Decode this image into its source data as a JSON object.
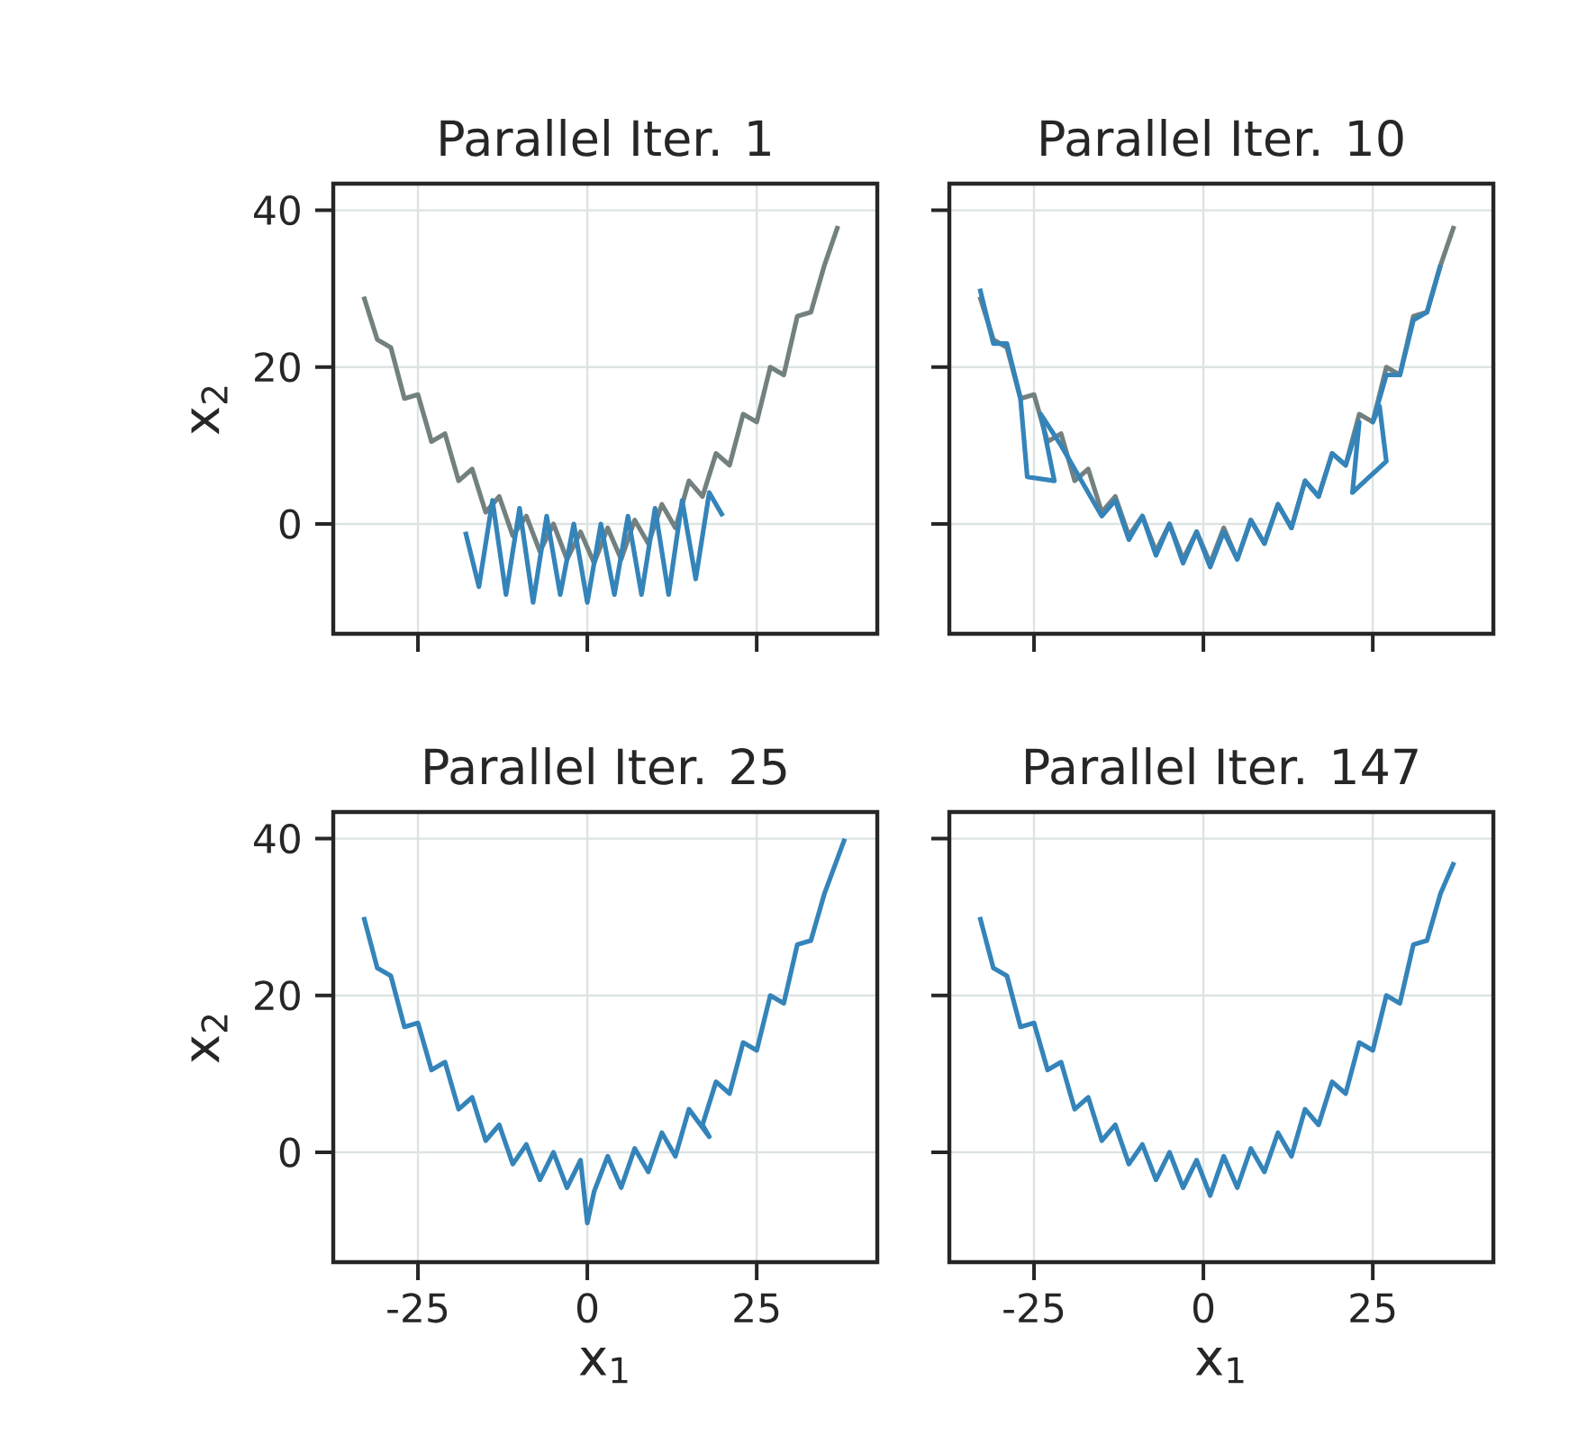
{
  "chart_data": [
    {
      "type": "line",
      "title": "Parallel Iter. 1",
      "ylabel": "x$_{2}$",
      "xlim": [
        -37.5,
        42.8
      ],
      "ylim": [
        -14,
        43.4
      ],
      "xticks": [
        -25,
        0,
        25
      ],
      "yticks": [
        0,
        20,
        40
      ],
      "grid": true,
      "tick_labels": "y",
      "series": [
        {
          "color": "#738080",
          "x": [
            -33,
            -31,
            -29,
            -27,
            -25,
            -23,
            -21,
            -19,
            -17,
            -15,
            -13,
            -11,
            -9,
            -7,
            -5,
            -3,
            -1,
            1,
            3,
            5,
            7,
            9,
            11,
            13,
            15,
            17,
            19,
            21,
            23,
            25,
            27,
            29,
            31,
            33,
            35,
            37
          ],
          "values": [
            29,
            23.5,
            22.5,
            16,
            16.5,
            10.5,
            11.5,
            5.5,
            7,
            1.5,
            3.5,
            -1.5,
            1,
            -3.5,
            0,
            -4.5,
            -1,
            -5,
            -0.5,
            -4.5,
            0.5,
            -2.5,
            2.5,
            -0.5,
            5.5,
            3.5,
            9,
            7.5,
            14,
            13,
            20,
            19,
            26.5,
            27,
            33,
            38
          ]
        },
        {
          "color": "#3484ba",
          "x": [
            -18,
            -16,
            -14,
            -12,
            -10,
            -8,
            -6,
            -4,
            -2,
            0,
            2,
            4,
            6,
            8,
            10,
            12,
            14,
            16,
            18,
            20
          ],
          "values": [
            -1,
            -8,
            3,
            -9,
            2,
            -10,
            1,
            -9,
            0,
            -10,
            0,
            -9,
            1,
            -9,
            2,
            -9,
            3,
            -7,
            4,
            1
          ]
        }
      ]
    },
    {
      "type": "line",
      "title": "Parallel Iter. 10",
      "xlim": [
        -37.5,
        42.8
      ],
      "ylim": [
        -14,
        43.4
      ],
      "xticks": [
        -25,
        0,
        25
      ],
      "yticks": [
        0,
        20,
        40
      ],
      "grid": true,
      "tick_labels": false,
      "series": [
        {
          "color": "#738080",
          "x": [
            -33,
            -31,
            -29,
            -27,
            -25,
            -23,
            -21,
            -19,
            -17,
            -15,
            -13,
            -11,
            -9,
            -7,
            -5,
            -3,
            -1,
            1,
            3,
            5,
            7,
            9,
            11,
            13,
            15,
            17,
            19,
            21,
            23,
            25,
            27,
            29,
            31,
            33,
            35,
            37
          ],
          "values": [
            29,
            23.5,
            22.5,
            16,
            16.5,
            10.5,
            11.5,
            5.5,
            7,
            1.5,
            3.5,
            -1.5,
            1,
            -3.5,
            0,
            -4.5,
            -1,
            -5,
            -0.5,
            -4.5,
            0.5,
            -2.5,
            2.5,
            -0.5,
            5.5,
            3.5,
            9,
            7.5,
            14,
            13,
            20,
            19,
            26.5,
            27,
            33,
            38
          ]
        },
        {
          "color": "#3484ba",
          "x": [
            -33,
            -31,
            -29,
            -27,
            -26,
            -22,
            -24,
            -21,
            -19,
            -17,
            -15,
            -13,
            -11,
            -9,
            -7,
            -5,
            -3,
            -1,
            1,
            3,
            5,
            7,
            9,
            11,
            13,
            15,
            17,
            19,
            21,
            23,
            22,
            27,
            26,
            25,
            27,
            29,
            31,
            33,
            35
          ],
          "values": [
            30,
            23,
            23,
            16,
            6,
            5.5,
            14,
            10,
            7,
            4,
            1,
            3,
            -2,
            1,
            -4,
            0,
            -5,
            -1,
            -5.5,
            -1,
            -4.5,
            0.5,
            -2.5,
            2.5,
            -0.5,
            5.5,
            3.5,
            9,
            7.5,
            13,
            4,
            8,
            15,
            13,
            19,
            19,
            26,
            27,
            33
          ]
        }
      ]
    },
    {
      "type": "line",
      "title": "Parallel Iter. 25",
      "xlabel": "x$_{1}$",
      "ylabel": "x$_{2}$",
      "xlim": [
        -37.5,
        42.8
      ],
      "ylim": [
        -14,
        43.4
      ],
      "xticks": [
        -25,
        0,
        25
      ],
      "yticks": [
        0,
        20,
        40
      ],
      "grid": true,
      "series": [
        {
          "color": "#3484ba",
          "x": [
            -33,
            -31,
            -29,
            -27,
            -25,
            -23,
            -21,
            -19,
            -17,
            -15,
            -13,
            -11,
            -9,
            -7,
            -5,
            -3,
            -1,
            0,
            1,
            3,
            5,
            7,
            9,
            11,
            13,
            15,
            18,
            17,
            19,
            21,
            23,
            25,
            27,
            29,
            31,
            33,
            35,
            38
          ],
          "values": [
            30,
            23.5,
            22.5,
            16,
            16.5,
            10.5,
            11.5,
            5.5,
            7,
            1.5,
            3.5,
            -1.5,
            1,
            -3.5,
            0,
            -4.5,
            -1,
            -9,
            -5,
            -0.5,
            -4.5,
            0.5,
            -2.5,
            2.5,
            -0.5,
            5.5,
            2,
            3.5,
            9,
            7.5,
            14,
            13,
            20,
            19,
            26.5,
            27,
            33,
            40
          ]
        }
      ]
    },
    {
      "type": "line",
      "title": "Parallel Iter. 147",
      "xlabel": "x$_{1}$",
      "xlim": [
        -37.5,
        42.8
      ],
      "ylim": [
        -14,
        43.4
      ],
      "xticks": [
        -25,
        0,
        25
      ],
      "yticks": [
        0,
        20,
        40
      ],
      "grid": true,
      "tick_labels": "x",
      "series": [
        {
          "color": "#3484ba",
          "x": [
            -33,
            -31,
            -29,
            -27,
            -25,
            -23,
            -21,
            -19,
            -17,
            -15,
            -13,
            -11,
            -9,
            -7,
            -5,
            -3,
            -1,
            1,
            3,
            5,
            7,
            9,
            11,
            13,
            15,
            17,
            19,
            21,
            23,
            25,
            27,
            29,
            31,
            33,
            35,
            37
          ],
          "values": [
            30,
            23.5,
            22.5,
            16,
            16.5,
            10.5,
            11.5,
            5.5,
            7,
            1.5,
            3.5,
            -1.5,
            1,
            -3.5,
            0,
            -4.5,
            -1,
            -5.5,
            -0.5,
            -4.5,
            0.5,
            -2.5,
            2.5,
            -0.5,
            5.5,
            3.5,
            9,
            7.5,
            14,
            13,
            20,
            19,
            26.5,
            27,
            33,
            37
          ]
        }
      ]
    }
  ]
}
